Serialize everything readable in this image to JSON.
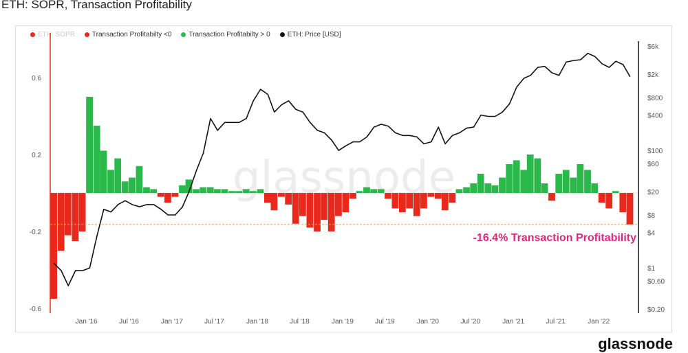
{
  "title": "ETH: SOPR, Transaction Profitability",
  "legend": [
    {
      "label": "ETH: SOPR",
      "color": "#e8291c",
      "muted": true
    },
    {
      "label": "Transaction Profitabilty <0",
      "color": "#e8291c",
      "muted": false
    },
    {
      "label": "Transaction Profitabilty > 0",
      "color": "#2ab84a",
      "muted": false
    },
    {
      "label": "ETH: Price [USD]",
      "color": "#111111",
      "muted": false
    }
  ],
  "watermark": "glassnode",
  "brand": "glassnode",
  "annotation": "-16.4% Transaction Profitability",
  "annotation_color": "#e0267a",
  "colors": {
    "positive": "#2ab84a",
    "negative": "#e8291c",
    "price": "#111111",
    "reference": "#f0a24a"
  },
  "chart_data": {
    "type": "area",
    "title": "",
    "xlabel": "",
    "ylabel": "",
    "x_ticks": [
      "Jan '16",
      "Jul '16",
      "Jan '17",
      "Jul '17",
      "Jan '18",
      "Jul '18",
      "Jan '19",
      "Jul '19",
      "Jan '20",
      "Jul '20",
      "Jan '21",
      "Jul '21",
      "Jan '22"
    ],
    "left_axis": {
      "ticks": [
        "0.6",
        "0.2",
        "-0.2",
        "-0.6"
      ],
      "range": [
        -0.6,
        0.6
      ]
    },
    "right_axis": {
      "scale": "log",
      "ticks": [
        "$6k",
        "$2k",
        "$800",
        "$400",
        "$100",
        "$60",
        "$20",
        "$8",
        "$4",
        "$1",
        "$0.60",
        "$0.20"
      ],
      "range": [
        0.2,
        6000
      ]
    },
    "reference_line": {
      "y": -0.164
    },
    "series": [
      {
        "name": "Transaction Profitabilty",
        "axis": "left",
        "x": [
          "2015-08",
          "2015-09",
          "2015-10",
          "2015-11",
          "2015-12",
          "2016-01",
          "2016-02",
          "2016-03",
          "2016-04",
          "2016-05",
          "2016-06",
          "2016-07",
          "2016-08",
          "2016-09",
          "2016-10",
          "2016-11",
          "2016-12",
          "2017-01",
          "2017-02",
          "2017-03",
          "2017-04",
          "2017-05",
          "2017-06",
          "2017-07",
          "2017-08",
          "2017-09",
          "2017-10",
          "2017-11",
          "2017-12",
          "2018-01",
          "2018-02",
          "2018-03",
          "2018-04",
          "2018-05",
          "2018-06",
          "2018-07",
          "2018-08",
          "2018-09",
          "2018-10",
          "2018-11",
          "2018-12",
          "2019-01",
          "2019-02",
          "2019-03",
          "2019-04",
          "2019-05",
          "2019-06",
          "2019-07",
          "2019-08",
          "2019-09",
          "2019-10",
          "2019-11",
          "2019-12",
          "2020-01",
          "2020-02",
          "2020-03",
          "2020-04",
          "2020-05",
          "2020-06",
          "2020-07",
          "2020-08",
          "2020-09",
          "2020-10",
          "2020-11",
          "2020-12",
          "2021-01",
          "2021-02",
          "2021-03",
          "2021-04",
          "2021-05",
          "2021-06",
          "2021-07",
          "2021-08",
          "2021-09",
          "2021-10",
          "2021-11",
          "2021-12",
          "2022-01",
          "2022-02",
          "2022-03",
          "2022-04",
          "2022-05"
        ],
        "values": [
          -0.55,
          -0.3,
          -0.22,
          -0.25,
          -0.2,
          0.5,
          0.35,
          0.22,
          0.12,
          0.18,
          0.06,
          0.08,
          0.14,
          0.03,
          0.02,
          -0.02,
          -0.05,
          -0.02,
          0.04,
          0.07,
          0.02,
          0.03,
          0.03,
          0.02,
          0.02,
          0.01,
          0.01,
          0.02,
          0.01,
          0.02,
          -0.05,
          -0.09,
          -0.02,
          -0.06,
          -0.16,
          -0.12,
          -0.18,
          -0.2,
          -0.14,
          -0.2,
          -0.12,
          -0.1,
          -0.03,
          0.01,
          0.03,
          0.02,
          0.02,
          -0.03,
          -0.08,
          -0.1,
          -0.08,
          -0.12,
          -0.08,
          -0.02,
          -0.03,
          -0.09,
          -0.05,
          0.02,
          0.03,
          0.05,
          0.1,
          0.05,
          0.04,
          0.08,
          0.15,
          0.17,
          0.12,
          0.2,
          0.18,
          0.05,
          -0.04,
          0.1,
          0.12,
          0.08,
          0.15,
          0.12,
          0.05,
          -0.05,
          -0.08,
          0.01,
          -0.1,
          -0.164
        ]
      },
      {
        "name": "ETH: Price [USD]",
        "axis": "right",
        "x": [
          "2015-08",
          "2015-09",
          "2015-10",
          "2015-11",
          "2015-12",
          "2016-01",
          "2016-02",
          "2016-03",
          "2016-04",
          "2016-05",
          "2016-06",
          "2016-07",
          "2016-08",
          "2016-09",
          "2016-10",
          "2016-11",
          "2016-12",
          "2017-01",
          "2017-02",
          "2017-03",
          "2017-04",
          "2017-05",
          "2017-06",
          "2017-07",
          "2017-08",
          "2017-09",
          "2017-10",
          "2017-11",
          "2017-12",
          "2018-01",
          "2018-02",
          "2018-03",
          "2018-04",
          "2018-05",
          "2018-06",
          "2018-07",
          "2018-08",
          "2018-09",
          "2018-10",
          "2018-11",
          "2018-12",
          "2019-01",
          "2019-02",
          "2019-03",
          "2019-04",
          "2019-05",
          "2019-06",
          "2019-07",
          "2019-08",
          "2019-09",
          "2019-10",
          "2019-11",
          "2019-12",
          "2020-01",
          "2020-02",
          "2020-03",
          "2020-04",
          "2020-05",
          "2020-06",
          "2020-07",
          "2020-08",
          "2020-09",
          "2020-10",
          "2020-11",
          "2020-12",
          "2021-01",
          "2021-02",
          "2021-03",
          "2021-04",
          "2021-05",
          "2021-06",
          "2021-07",
          "2021-08",
          "2021-09",
          "2021-10",
          "2021-11",
          "2021-12",
          "2022-01",
          "2022-02",
          "2022-03",
          "2022-04",
          "2022-05"
        ],
        "values": [
          1.2,
          0.9,
          0.5,
          0.9,
          0.9,
          1.0,
          3.5,
          10,
          9,
          12,
          14,
          12,
          11,
          12,
          12,
          10,
          8,
          8,
          11,
          20,
          45,
          90,
          350,
          220,
          300,
          300,
          300,
          350,
          700,
          1100,
          900,
          450,
          600,
          700,
          500,
          450,
          300,
          220,
          200,
          150,
          100,
          120,
          140,
          140,
          170,
          250,
          280,
          260,
          200,
          180,
          180,
          170,
          130,
          140,
          250,
          130,
          180,
          200,
          240,
          250,
          400,
          380,
          380,
          450,
          620,
          1200,
          1700,
          1900,
          2600,
          2700,
          2100,
          1900,
          3200,
          3400,
          3500,
          4500,
          4000,
          3000,
          2600,
          3300,
          2900,
          1800
        ]
      }
    ]
  }
}
